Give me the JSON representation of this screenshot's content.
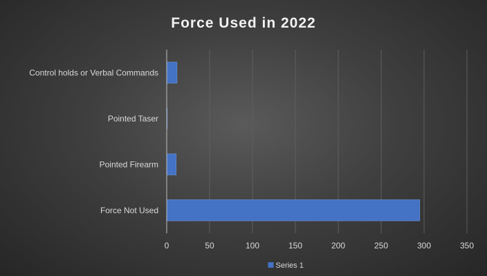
{
  "chart_data": {
    "type": "bar",
    "orientation": "horizontal",
    "title": "Force Used in 2022",
    "categories": [
      "Control holds or Verbal Commands",
      "Pointed Taser",
      "Pointed Firearm",
      "Force Not Used"
    ],
    "series": [
      {
        "name": "Series 1",
        "values": [
          12,
          0,
          11,
          295
        ],
        "color": "#4472c4"
      }
    ],
    "xlim": [
      0,
      350
    ],
    "xticks": [
      0,
      50,
      100,
      150,
      200,
      250,
      300,
      350
    ],
    "grid": true,
    "legend_position": "bottom"
  }
}
